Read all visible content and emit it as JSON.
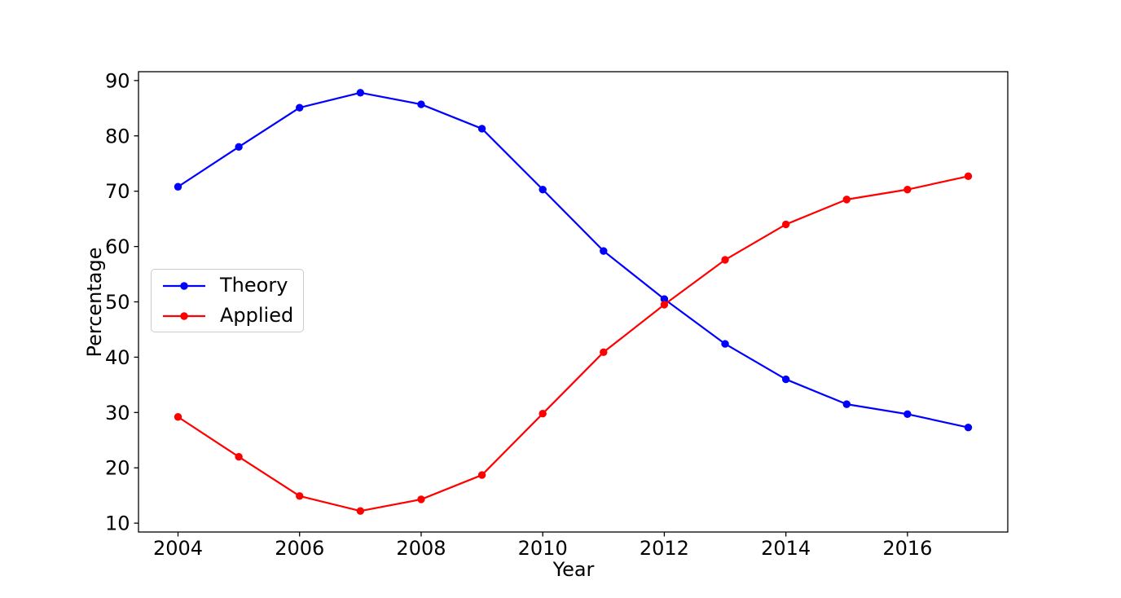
{
  "chart_data": {
    "type": "line",
    "title": "",
    "xlabel": "Year",
    "ylabel": "Percentage",
    "x": [
      2004,
      2005,
      2006,
      2007,
      2008,
      2009,
      2010,
      2011,
      2012,
      2013,
      2014,
      2015,
      2016,
      2017
    ],
    "series": [
      {
        "name": "Theory",
        "color": "#0000ff",
        "marker": "circle",
        "values": [
          70.8,
          78.0,
          85.1,
          87.8,
          85.7,
          81.3,
          70.3,
          59.2,
          50.5,
          42.4,
          36.0,
          31.5,
          29.7,
          27.3
        ]
      },
      {
        "name": "Applied",
        "color": "#ff0000",
        "marker": "circle",
        "values": [
          29.2,
          22.0,
          14.9,
          12.2,
          14.3,
          18.7,
          29.8,
          40.9,
          49.5,
          57.6,
          64.0,
          68.5,
          70.3,
          72.7
        ]
      }
    ],
    "xlim": [
      2003.35,
      2017.65
    ],
    "ylim": [
      8.4,
      91.6
    ],
    "xticks": [
      2004,
      2006,
      2008,
      2010,
      2012,
      2014,
      2016
    ],
    "yticks": [
      10,
      20,
      30,
      40,
      50,
      60,
      70,
      80,
      90
    ],
    "grid": false,
    "legend_position": "center-left",
    "axis_color": "#000000",
    "background": "#ffffff"
  }
}
